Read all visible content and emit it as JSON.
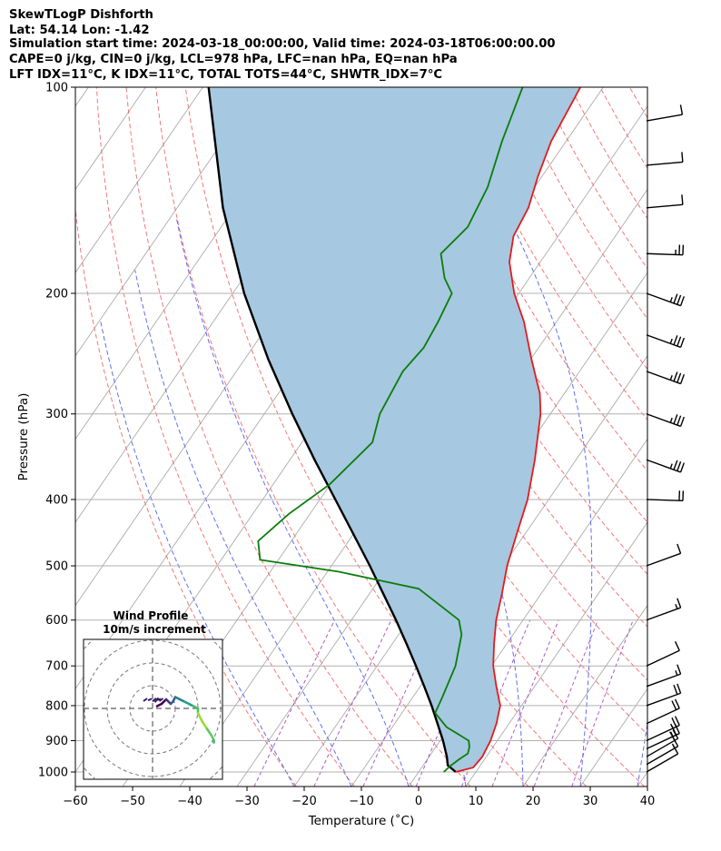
{
  "header": {
    "line1": "SkewTLogP Dishforth",
    "line2": "Lat: 54.14   Lon: -1.42",
    "line3": "Simulation start time: 2024-03-18_00:00:00, Valid time: 2024-03-18T06:00:00.00",
    "line4": "CAPE=0 j/kg, CIN=0 j/kg, LCL=978 hPa, LFC=nan hPa, EQ=nan hPa",
    "line5": "LFT IDX=11°C, K IDX=11°C, TOTAL TOTS=44°C, SHWTR_IDX=7°C"
  },
  "colors": {
    "temperature": "#e41a1c",
    "dewpoint": "#0a7d0a",
    "parcel": "#000000",
    "cape_fill": "#a6c8e0",
    "isotherm": "#aaaaaa",
    "dry_adiabat": "#f06060",
    "moist_adiabat": "#4455ee",
    "mixing_ratio": "#9b30c0",
    "isobar": "#b0b0b0"
  },
  "chart_data": {
    "type": "line",
    "subtype": "skew-T log-P",
    "xlabel": "Temperature (˚C)",
    "ylabel": "Pressure (hPa)",
    "xlim": [
      -60,
      40
    ],
    "ylim": [
      1050,
      100
    ],
    "x_ticks": [
      "−60",
      "−50",
      "−40",
      "−30",
      "−20",
      "−10",
      "0",
      "10",
      "20",
      "30",
      "40"
    ],
    "x_tick_values": [
      -60,
      -50,
      -40,
      -30,
      -20,
      -10,
      0,
      10,
      20,
      30,
      40
    ],
    "y_ticks": [
      "100",
      "200",
      "300",
      "400",
      "500",
      "600",
      "700",
      "800",
      "900",
      "1000"
    ],
    "y_tick_values": [
      100,
      200,
      300,
      400,
      500,
      600,
      700,
      800,
      900,
      1000
    ],
    "y_scale": "log",
    "grid": true,
    "series": [
      {
        "key": "temperature",
        "xunit": "degC",
        "points": [
          [
            1000,
            6.5
          ],
          [
            985,
            9.0
          ],
          [
            950,
            9.3
          ],
          [
            900,
            8.8
          ],
          [
            850,
            7.8
          ],
          [
            800,
            6.3
          ],
          [
            750,
            3.3
          ],
          [
            700,
            0.3
          ],
          [
            650,
            -2.2
          ],
          [
            600,
            -4.7
          ],
          [
            550,
            -6.8
          ],
          [
            500,
            -9.3
          ],
          [
            450,
            -11.4
          ],
          [
            400,
            -13.7
          ],
          [
            350,
            -17.2
          ],
          [
            300,
            -21.7
          ],
          [
            280,
            -24.3
          ],
          [
            250,
            -29.8
          ],
          [
            220,
            -35.7
          ],
          [
            200,
            -40.8
          ],
          [
            180,
            -45.4
          ],
          [
            165,
            -47.8
          ],
          [
            150,
            -48.6
          ],
          [
            135,
            -50.7
          ],
          [
            120,
            -52.6
          ],
          [
            100,
            -54.0
          ]
        ]
      },
      {
        "key": "dewpoint",
        "xunit": "degC",
        "points": [
          [
            1000,
            4.4
          ],
          [
            980,
            4.8
          ],
          [
            960,
            5.5
          ],
          [
            940,
            6.4
          ],
          [
            920,
            5.9
          ],
          [
            900,
            5.0
          ],
          [
            860,
            -0.5
          ],
          [
            820,
            -4.2
          ],
          [
            780,
            -4.8
          ],
          [
            700,
            -6.3
          ],
          [
            630,
            -9.0
          ],
          [
            600,
            -11.2
          ],
          [
            540,
            -22.0
          ],
          [
            510,
            -38.0
          ],
          [
            490,
            -53.2
          ],
          [
            460,
            -55.8
          ],
          [
            420,
            -53.7
          ],
          [
            380,
            -50.1
          ],
          [
            330,
            -47.7
          ],
          [
            300,
            -49.8
          ],
          [
            260,
            -50.9
          ],
          [
            240,
            -50.1
          ],
          [
            220,
            -50.7
          ],
          [
            200,
            -51.7
          ],
          [
            190,
            -54.8
          ],
          [
            175,
            -58.4
          ],
          [
            160,
            -56.9
          ],
          [
            140,
            -58.2
          ],
          [
            120,
            -61.2
          ],
          [
            100,
            -64.1
          ]
        ]
      },
      {
        "key": "parcel",
        "xunit": "degC",
        "points": [
          [
            1000,
            6.5
          ],
          [
            978,
            4.3
          ],
          [
            950,
            3.1
          ],
          [
            900,
            0.5
          ],
          [
            850,
            -2.5
          ],
          [
            800,
            -5.7
          ],
          [
            750,
            -9.3
          ],
          [
            700,
            -13.2
          ],
          [
            650,
            -17.5
          ],
          [
            600,
            -22.2
          ],
          [
            550,
            -27.5
          ],
          [
            500,
            -33.3
          ],
          [
            450,
            -39.9
          ],
          [
            400,
            -47.3
          ],
          [
            350,
            -55.7
          ],
          [
            300,
            -65.1
          ],
          [
            250,
            -75.8
          ],
          [
            200,
            -88.0
          ],
          [
            150,
            -102.0
          ],
          [
            100,
            -119.0
          ]
        ]
      }
    ],
    "wind_barbs": {
      "units": "knots",
      "points": [
        {
          "p": 1000,
          "spd": 10,
          "dir": 240
        },
        {
          "p": 975,
          "spd": 15,
          "dir": 240
        },
        {
          "p": 950,
          "spd": 20,
          "dir": 240
        },
        {
          "p": 925,
          "spd": 25,
          "dir": 245
        },
        {
          "p": 900,
          "spd": 25,
          "dir": 245
        },
        {
          "p": 850,
          "spd": 20,
          "dir": 245
        },
        {
          "p": 800,
          "spd": 20,
          "dir": 250
        },
        {
          "p": 750,
          "spd": 15,
          "dir": 250
        },
        {
          "p": 700,
          "spd": 10,
          "dir": 245
        },
        {
          "p": 600,
          "spd": 15,
          "dir": 250
        },
        {
          "p": 500,
          "spd": 10,
          "dir": 250
        },
        {
          "p": 400,
          "spd": 20,
          "dir": 272
        },
        {
          "p": 350,
          "spd": 35,
          "dir": 290
        },
        {
          "p": 300,
          "spd": 35,
          "dir": 290
        },
        {
          "p": 260,
          "spd": 35,
          "dir": 290
        },
        {
          "p": 230,
          "spd": 35,
          "dir": 290
        },
        {
          "p": 200,
          "spd": 35,
          "dir": 290
        },
        {
          "p": 175,
          "spd": 25,
          "dir": 272
        },
        {
          "p": 150,
          "spd": 10,
          "dir": 265
        },
        {
          "p": 130,
          "spd": 10,
          "dir": 265
        },
        {
          "p": 112,
          "spd": 10,
          "dir": 260
        }
      ]
    },
    "hodograph": {
      "title": "Wind Profile",
      "subtitle": "10m/s increment",
      "ring_increment_ms": 10,
      "points_uv_ms": [
        [
          2,
          1
        ],
        [
          4,
          2
        ],
        [
          6,
          4
        ],
        [
          7,
          3
        ],
        [
          8,
          2
        ],
        [
          9,
          3
        ],
        [
          10,
          5
        ],
        [
          12,
          4
        ],
        [
          14,
          3
        ],
        [
          16,
          2
        ],
        [
          18,
          1
        ],
        [
          20,
          0
        ],
        [
          20,
          -2
        ],
        [
          22,
          -6
        ],
        [
          24,
          -9
        ],
        [
          26,
          -12
        ],
        [
          27,
          -14
        ],
        [
          27,
          -15
        ]
      ]
    },
    "legend": "none"
  }
}
